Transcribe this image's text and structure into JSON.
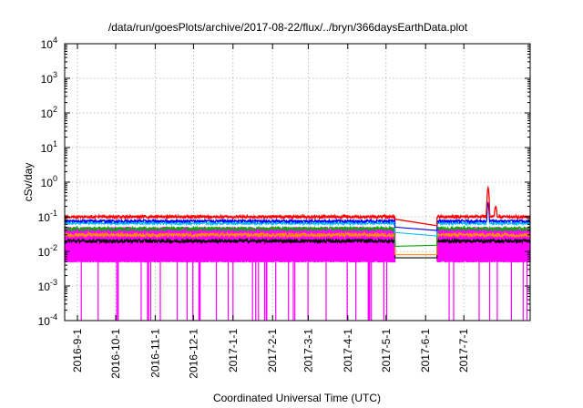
{
  "chart_data": {
    "type": "line",
    "title": "/data/run/goesPlots/archive/2017-08-22/flux/../bryn/366daysEarthData.plot",
    "xlabel": "Coordinated Universal Time (UTC)",
    "ylabel": "cSv/day",
    "yscale": "log",
    "ylim": [
      0.0001,
      10000
    ],
    "xlim": [
      "2016-08-22",
      "2017-08-22"
    ],
    "grid": true,
    "yticks": [
      {
        "value": 0.0001,
        "base": "10",
        "exp": "-4"
      },
      {
        "value": 0.001,
        "base": "10",
        "exp": "-3"
      },
      {
        "value": 0.01,
        "base": "10",
        "exp": "-2"
      },
      {
        "value": 0.1,
        "base": "10",
        "exp": "-1"
      },
      {
        "value": 1,
        "base": "10",
        "exp": "0"
      },
      {
        "value": 10,
        "base": "10",
        "exp": "1"
      },
      {
        "value": 100,
        "base": "10",
        "exp": "2"
      },
      {
        "value": 1000,
        "base": "10",
        "exp": "3"
      },
      {
        "value": 10000,
        "base": "10",
        "exp": "4"
      }
    ],
    "xticks": [
      "2016-9-1",
      "2016-10-1",
      "2016-11-1",
      "2016-12-1",
      "2017-1-1",
      "2017-2-1",
      "2017-3-1",
      "2017-4-1",
      "2017-5-1",
      "2017-6-1",
      "2017-7-1"
    ],
    "data_gap": [
      "2017-05-08",
      "2017-06-10"
    ],
    "series": [
      {
        "color": "#ff0000",
        "typical": 0.1,
        "gap_start": 0.085,
        "gap_end": 0.055,
        "peak": {
          "x": "2017-07-20",
          "y": 0.7
        }
      },
      {
        "color": "#0000ff",
        "typical": 0.075,
        "gap_start": 0.05,
        "gap_end": 0.04
      },
      {
        "color": "#00bfff",
        "typical": 0.065,
        "gap_start": 0.035,
        "gap_end": 0.028
      },
      {
        "color": "#00aa00",
        "typical": 0.045,
        "gap_start": 0.014,
        "gap_end": 0.015
      },
      {
        "color": "#ff8c00",
        "typical": 0.03,
        "gap_start": 0.008,
        "gap_end": 0.008
      },
      {
        "color": "#000000",
        "typical": 0.02,
        "gap_start": 0.0065,
        "gap_end": 0.0065
      },
      {
        "color": "#ff00ff",
        "typical_low": 0.005,
        "typical_high": 0.045,
        "drop_to": 0.0001
      }
    ]
  }
}
